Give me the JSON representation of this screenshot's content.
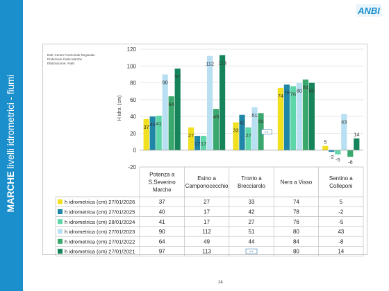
{
  "sidebar": {
    "title_bold": "MARCHE",
    "title_rest": " livelli idrometrici - fiumi",
    "color": "#1b8fcc"
  },
  "logo": {
    "text": "ANBI",
    "icon": "anbi-logo-icon",
    "color": "#1b8fcc"
  },
  "source_note": {
    "line1": "Dati: Centro Funzionale Regionale",
    "line2": "Protezione Civile Marche",
    "line3": "Elaborazione: ANBI"
  },
  "page_number": "14",
  "chart_data": {
    "type": "bar",
    "ylabel": "H idro. (cm)",
    "ylim": [
      -20,
      120
    ],
    "yticks": [
      -20,
      0,
      20,
      40,
      60,
      80,
      100,
      120
    ],
    "grid": true,
    "legend_position": "bottom data table",
    "categories": [
      [
        "Potenza a",
        "S.Severino",
        "Marche"
      ],
      [
        "Esino a",
        "Camponocecchio"
      ],
      [
        "Tronto a",
        "Brecciarolo"
      ],
      [
        "Nera a Visso"
      ],
      [
        "Sentino a",
        "Colleponi"
      ]
    ],
    "series": [
      {
        "name": "h idrometrica (cm) 27/01/2026",
        "color": "#f0e020",
        "values": [
          37,
          27,
          33,
          74,
          5
        ]
      },
      {
        "name": "h idrometrica (cm) 27/01/2025",
        "color": "#1f86a8",
        "values": [
          40,
          17,
          42,
          78,
          -2
        ]
      },
      {
        "name": "h idrometrica (cm) 28/01/2024",
        "color": "#5fd6a8",
        "values": [
          41,
          17,
          27,
          76,
          -5
        ]
      },
      {
        "name": "h idrometrica (cm) 27/01/2023",
        "color": "#b9e0f2",
        "values": [
          90,
          112,
          51,
          80,
          43
        ]
      },
      {
        "name": "h idrometrica (cm) 27/01/2022",
        "color": "#3aa86d",
        "values": [
          64,
          49,
          44,
          84,
          -8
        ]
      },
      {
        "name": "h idrometrica (cm) 27/01/2021",
        "color": "#15845a",
        "values": [
          97,
          113,
          null,
          80,
          14
        ]
      }
    ],
    "label_display": [
      [
        "37",
        "40",
        "41",
        "90",
        "64",
        "97"
      ],
      [
        "27",
        "17",
        "17",
        "112",
        "49",
        "113"
      ],
      [
        "33",
        "42",
        "27",
        "51",
        "44",
        "n.d."
      ],
      [
        "74",
        "78",
        "76",
        "80",
        "84",
        "80"
      ],
      [
        "5",
        "-2",
        "-5",
        "43",
        "-8",
        "14"
      ]
    ],
    "table_display": [
      [
        "37",
        "27",
        "33",
        "74",
        "5"
      ],
      [
        "40",
        "17",
        "42",
        "78",
        "-2"
      ],
      [
        "41",
        "17",
        "27",
        "76",
        "-5"
      ],
      [
        "90",
        "112",
        "51",
        "80",
        "43"
      ],
      [
        "64",
        "49",
        "44",
        "84",
        "-8"
      ],
      [
        "97",
        "113",
        "n.d.",
        "80",
        "14"
      ]
    ]
  }
}
